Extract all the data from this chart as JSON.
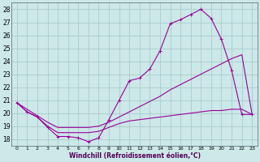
{
  "xlabel": "Windchill (Refroidissement éolien,°C)",
  "bg_color": "#cce8e8",
  "grid_color": "#aacccc",
  "line_color": "#990099",
  "xlim": [
    -0.5,
    23.5
  ],
  "ylim": [
    17.5,
    28.5
  ],
  "xticks": [
    0,
    1,
    2,
    3,
    4,
    5,
    6,
    7,
    8,
    9,
    10,
    11,
    12,
    13,
    14,
    15,
    16,
    17,
    18,
    19,
    20,
    21,
    22,
    23
  ],
  "yticks": [
    18,
    19,
    20,
    21,
    22,
    23,
    24,
    25,
    26,
    27,
    28
  ],
  "curve1_x": [
    0,
    1,
    2,
    3,
    4,
    5,
    6,
    7,
    8,
    9,
    10,
    11,
    12,
    13,
    14,
    15,
    16,
    17,
    18,
    19,
    20,
    21,
    22,
    23
  ],
  "curve1_y": [
    20.8,
    20.1,
    19.7,
    18.9,
    18.2,
    18.2,
    18.1,
    17.8,
    18.1,
    19.5,
    21.0,
    22.5,
    22.7,
    23.4,
    24.8,
    26.9,
    27.2,
    27.6,
    28.0,
    27.3,
    25.7,
    23.3,
    19.9,
    19.9
  ],
  "curve2_x": [
    0,
    1,
    2,
    3,
    4,
    5,
    6,
    7,
    8,
    9,
    10,
    11,
    12,
    13,
    14,
    15,
    16,
    17,
    18,
    19,
    20,
    21,
    22,
    23
  ],
  "curve2_y": [
    20.8,
    20.3,
    19.8,
    19.3,
    18.9,
    18.9,
    18.9,
    18.9,
    19.0,
    19.3,
    19.7,
    20.1,
    20.5,
    20.9,
    21.3,
    21.8,
    22.2,
    22.6,
    23.0,
    23.4,
    23.8,
    24.2,
    24.5,
    19.9
  ],
  "curve3_x": [
    0,
    1,
    2,
    3,
    4,
    5,
    6,
    7,
    8,
    9,
    10,
    11,
    12,
    13,
    14,
    15,
    16,
    17,
    18,
    19,
    20,
    21,
    22,
    23
  ],
  "curve3_y": [
    20.8,
    20.1,
    19.7,
    19.0,
    18.5,
    18.5,
    18.5,
    18.5,
    18.6,
    18.9,
    19.2,
    19.4,
    19.5,
    19.6,
    19.7,
    19.8,
    19.9,
    20.0,
    20.1,
    20.2,
    20.2,
    20.3,
    20.3,
    19.9
  ]
}
